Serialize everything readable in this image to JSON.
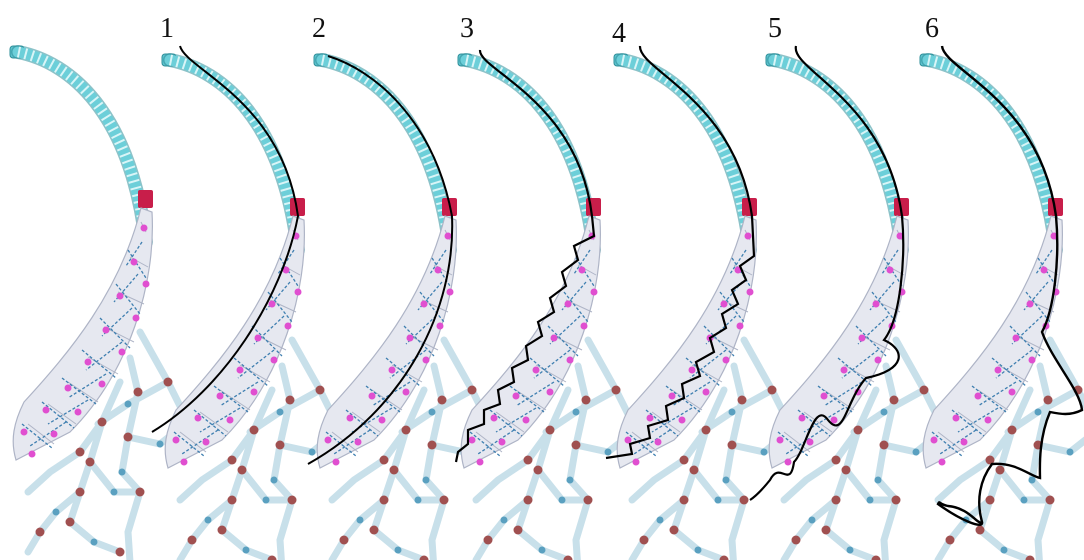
{
  "panels": [
    {
      "number": ""
    },
    {
      "number": "1"
    },
    {
      "number": "2"
    },
    {
      "number": "3"
    },
    {
      "number": "4"
    },
    {
      "number": "5"
    },
    {
      "number": "6"
    }
  ],
  "colors": {
    "background": "#ffffff",
    "stalk": "#5fc4cf",
    "stalk_dark": "#2f8f9a",
    "junction": "#c81e4a",
    "lattice": "#aeb4c6",
    "lattice_node": "#e04fd0",
    "cross": "#3f7fb0",
    "tendon": "#c8e0ea",
    "joint": "#a05050",
    "path": "#000000"
  },
  "path_styles": [
    "none",
    "smooth-outer-edge",
    "smooth-inner-edge",
    "zigzag-on-lattice",
    "zigzag-on-lattice",
    "large-zigzag-over-branches",
    "looping-zigzag-over-branches"
  ]
}
